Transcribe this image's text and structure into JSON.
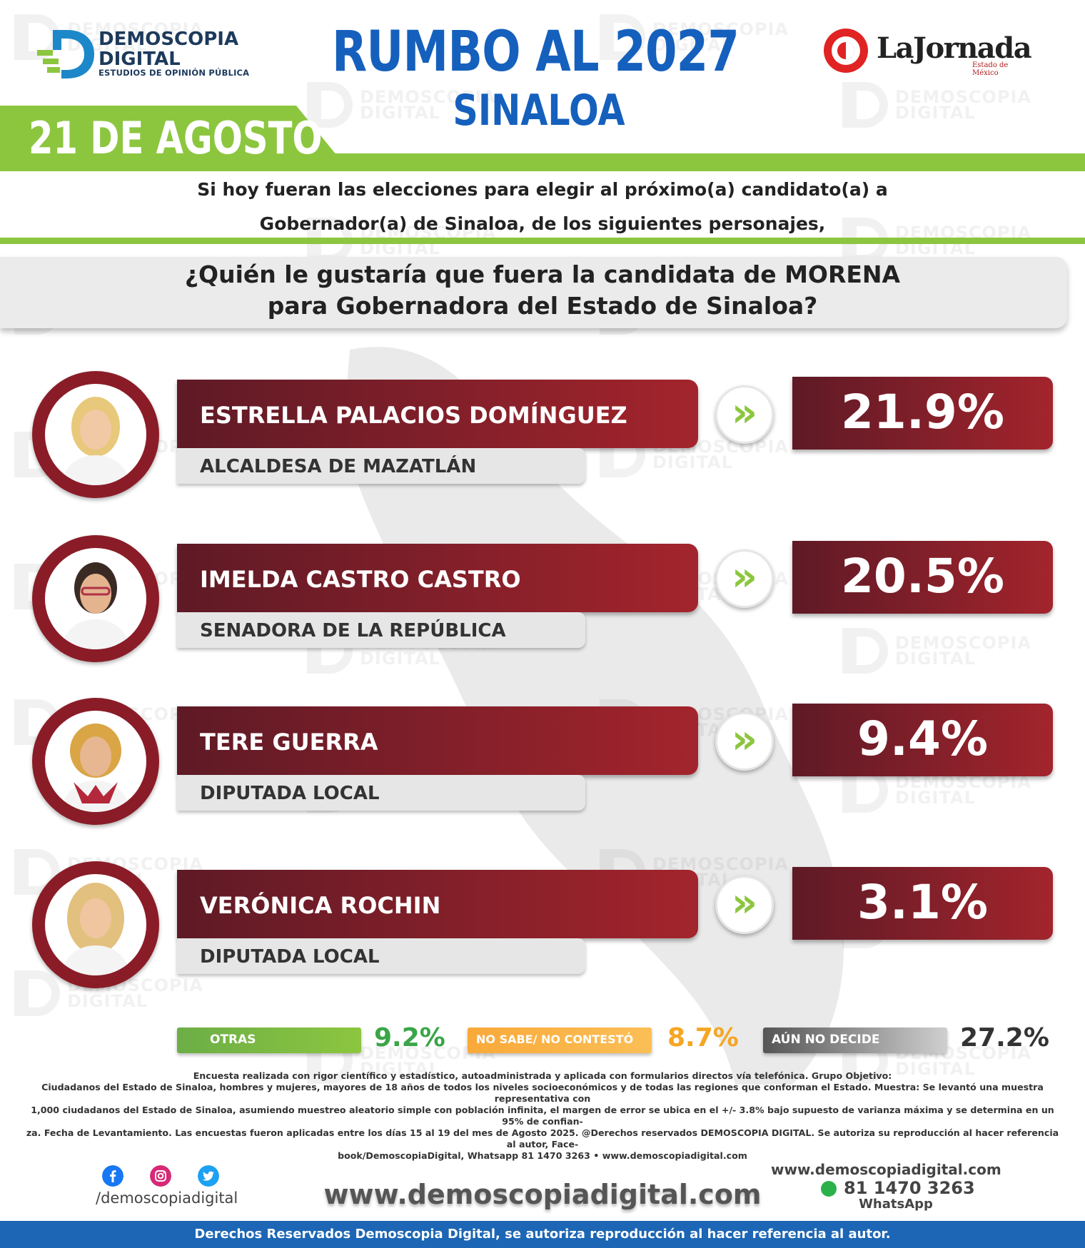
{
  "brand": {
    "line1": "DEMOSCOPIA",
    "line2": "DIGITAL",
    "tagline": "ESTUDIOS DE OPINIÓN PÚBLICA",
    "colors": {
      "blue": "#1560bd",
      "green": "#8cc63f",
      "maroon": "#8a1c28",
      "navy": "#1d3a5c"
    }
  },
  "header": {
    "title": "RUMBO AL 2027",
    "subtitle": "SINALOA",
    "date": "21 DE AGOSTO",
    "partner_logo": "LaJornada",
    "partner_sub": "Estado de México"
  },
  "intro": {
    "line1": "Si hoy fueran las elecciones para elegir al próximo(a) candidato(a) a",
    "line2": "Gobernador(a) de Sinaloa, de los siguientes personajes,"
  },
  "question": {
    "line1": "¿Quién le gustaría que fuera la candidata de MORENA",
    "line2": "para Gobernadora del Estado de Sinaloa?"
  },
  "chart_data": {
    "type": "bar",
    "title": "¿Quién le gustaría que fuera la candidata de MORENA para Gobernadora del Estado de Sinaloa?",
    "categories": [
      "ESTRELLA PALACIOS DOMÍNGUEZ",
      "IMELDA CASTRO CASTRO",
      "TERE GUERRA",
      "VERÓNICA ROCHIN",
      "OTRAS",
      "NO SABE/ NO CONTESTÓ",
      "AÚN NO DECIDE"
    ],
    "series": [
      {
        "values": [
          21.9,
          20.5,
          9.4,
          3.1,
          9.2,
          8.7,
          27.2
        ]
      }
    ],
    "candidates": [
      {
        "name": "ESTRELLA PALACIOS DOMÍNGUEZ",
        "role": "ALCALDESA DE MAZATLÁN",
        "pct": "21.9%",
        "value": 21.9
      },
      {
        "name": "IMELDA CASTRO CASTRO",
        "role": "SENADORA DE LA REPÚBLICA",
        "pct": "20.5%",
        "value": 20.5
      },
      {
        "name": "TERE GUERRA",
        "role": "DIPUTADA LOCAL",
        "pct": "9.4%",
        "value": 9.4
      },
      {
        "name": "VERÓNICA ROCHIN",
        "role": "DIPUTADA LOCAL",
        "pct": "3.1%",
        "value": 3.1
      }
    ],
    "others": [
      {
        "label": "OTRAS",
        "pct": "9.2%",
        "value": 9.2,
        "color": "#6cae47"
      },
      {
        "label": "NO SABE/ NO CONTESTÓ",
        "pct": "8.7%",
        "value": 8.7,
        "color": "#f9a93a"
      },
      {
        "label": "AÚN NO DECIDE",
        "pct": "27.2%",
        "value": 27.2,
        "color": "#555555"
      }
    ]
  },
  "fineprint": {
    "l1": "Encuesta realizada con rigor científico y estadístico, autoadministrada y aplicada con formularios directos vía telefónica. Grupo Objetivo:",
    "l2": "Ciudadanos del Estado de Sinaloa, hombres y mujeres, mayores de 18 años de todos los niveles socioeconómicos y de todas las regiones que conforman el Estado. Muestra: Se levantó una muestra representativa con",
    "l3": "1,000 ciudadanos del Estado de Sinaloa, asumiendo muestreo aleatorio simple con población infinita, el margen de error se ubica en el +/- 3.8% bajo supuesto de varianza máxima y se determina en un 95% de confian-",
    "l4": "za. Fecha de Levantamiento. Las encuestas fueron aplicadas entre los días 15 al 19 del mes de Agosto 2025. @Derechos reservados DEMOSCOPIA DIGITAL. Se autoriza su reproducción al hacer referencia al autor, Face-",
    "l5": "book/DemoscopiaDigital, Whatsapp 81 1470 3263 • www.demoscopiadigital.com"
  },
  "contact": {
    "handle": "/demoscopiadigital",
    "site": "www.demoscopiadigital.com",
    "site_small": "www.demoscopiadigital.com",
    "phone": "81 1470 3263",
    "whatsapp_label": "WhatsApp",
    "icons": [
      "facebook-icon",
      "instagram-icon",
      "twitter-icon",
      "whatsapp-icon"
    ]
  },
  "footer": {
    "text": "Derechos Reservados Demoscopia Digital, se autoriza reproducción al hacer referencia al autor."
  }
}
